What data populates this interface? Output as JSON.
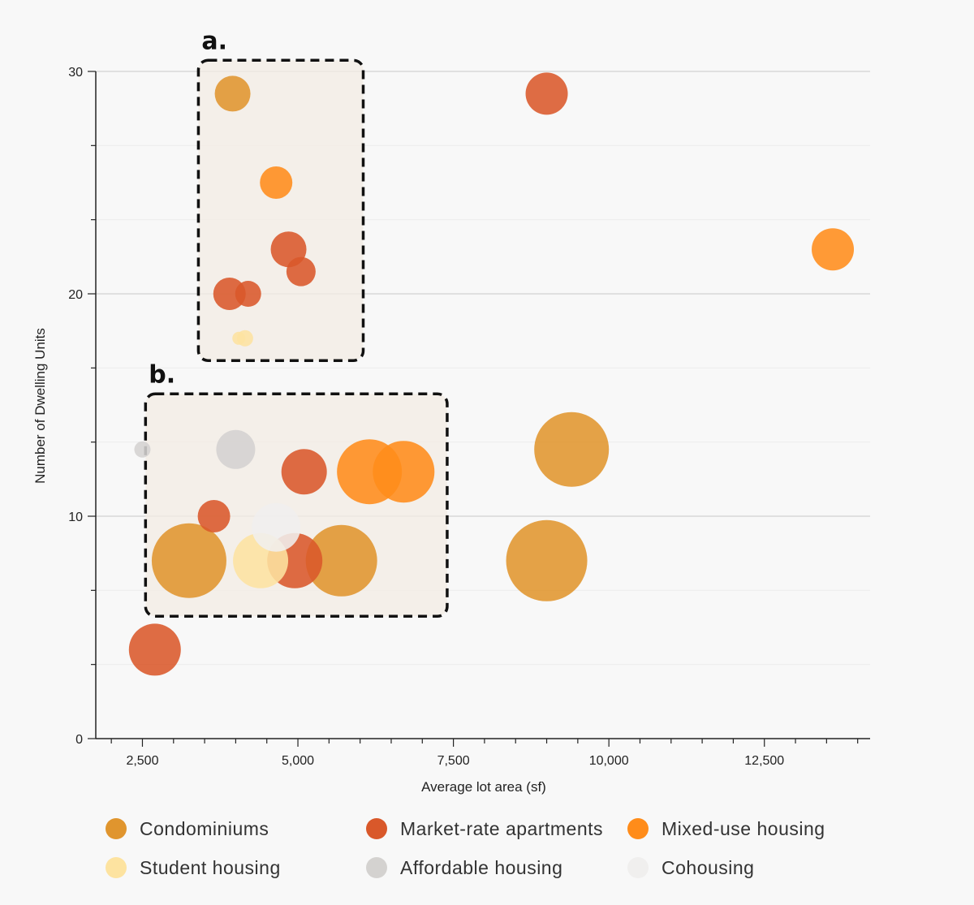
{
  "chart_data": {
    "type": "scatter",
    "bubble": true,
    "xlabel": "Average lot area (sf)",
    "ylabel": "Number of Dwelling Units",
    "xlim": [
      1750,
      14200
    ],
    "ylim": [
      0,
      30
    ],
    "xticks": [
      2500,
      5000,
      7500,
      10000,
      12500
    ],
    "xtick_labels": [
      "2,500",
      "5,000",
      "7,500",
      "10,000",
      "12,500"
    ],
    "yticks": [
      0,
      10,
      20,
      30
    ],
    "ytick_labels": [
      "0",
      "10",
      "20",
      "30"
    ],
    "grid": true,
    "legend_position": "bottom",
    "regions": [
      {
        "label": "a.",
        "x": [
          3400,
          6050
        ],
        "y": [
          17,
          30.5
        ]
      },
      {
        "label": "b.",
        "x": [
          2550,
          7400
        ],
        "y": [
          5.5,
          15.5
        ]
      }
    ],
    "series": [
      {
        "name": "Condominiums",
        "color": "#e0952e",
        "points": [
          {
            "x": 3950,
            "y": 29,
            "size": 11
          },
          {
            "x": 3250,
            "y": 8,
            "size": 23
          },
          {
            "x": 5700,
            "y": 8,
            "size": 22
          },
          {
            "x": 9400,
            "y": 13,
            "size": 23
          },
          {
            "x": 9000,
            "y": 8,
            "size": 25
          }
        ]
      },
      {
        "name": "Market-rate apartments",
        "color": "#d9582a",
        "points": [
          {
            "x": 9000,
            "y": 29,
            "size": 13
          },
          {
            "x": 4850,
            "y": 22,
            "size": 11
          },
          {
            "x": 5050,
            "y": 21,
            "size": 9
          },
          {
            "x": 3900,
            "y": 20,
            "size": 10
          },
          {
            "x": 4200,
            "y": 20,
            "size": 8
          },
          {
            "x": 5100,
            "y": 12,
            "size": 14
          },
          {
            "x": 3650,
            "y": 10,
            "size": 10
          },
          {
            "x": 4950,
            "y": 8,
            "size": 17
          },
          {
            "x": 2700,
            "y": 4,
            "size": 16
          }
        ]
      },
      {
        "name": "Mixed-use housing",
        "color": "#ff8c1a",
        "points": [
          {
            "x": 4650,
            "y": 25,
            "size": 10
          },
          {
            "x": 13600,
            "y": 22,
            "size": 13
          },
          {
            "x": 6150,
            "y": 12,
            "size": 20
          },
          {
            "x": 6700,
            "y": 12,
            "size": 19
          }
        ]
      },
      {
        "name": "Student housing",
        "color": "#fde3a0",
        "points": [
          {
            "x": 4050,
            "y": 18,
            "size": 4
          },
          {
            "x": 4150,
            "y": 18,
            "size": 5
          },
          {
            "x": 4400,
            "y": 8,
            "size": 17
          }
        ]
      },
      {
        "name": "Affordable housing",
        "color": "#d4d2d0",
        "points": [
          {
            "x": 2500,
            "y": 13,
            "size": 5
          },
          {
            "x": 4000,
            "y": 13,
            "size": 12
          }
        ]
      },
      {
        "name": "Cohousing",
        "color": "#f0efee",
        "points": [
          {
            "x": 4650,
            "y": 9.5,
            "size": 15
          }
        ]
      }
    ]
  }
}
